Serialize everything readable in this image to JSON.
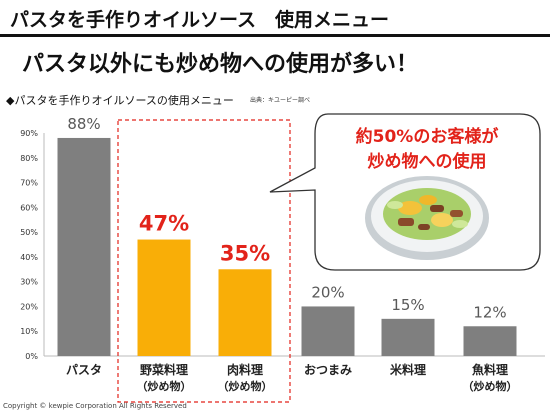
{
  "header": {
    "title": "パスタを手作りオイルソース　使用メニュー"
  },
  "headline": "パスタ以外にも炒め物への使用が多い！",
  "chart_caption": "◆パスタを手作りオイルソースの使用メニュー",
  "source": "出典：キユーピー調べ",
  "callout": {
    "line1": "約50%のお客様が",
    "line2": "炒め物への使用",
    "photo_icon": "stir-fry-dish-photo"
  },
  "copyright": "Copyright © kewpie Corporation All Rights Reserved",
  "colors": {
    "gray_bar": "#7f7f7f",
    "orange_bar": "#f9ae07",
    "highlight_red": "#e2231a",
    "label_gray": "#595959"
  },
  "chart_data": {
    "type": "bar",
    "ylim": [
      0,
      90
    ],
    "yticks": [
      "0%",
      "10%",
      "20%",
      "30%",
      "40%",
      "50%",
      "60%",
      "70%",
      "80%",
      "90%"
    ],
    "grid": false,
    "categories": [
      {
        "line1": "パスタ",
        "line2": ""
      },
      {
        "line1": "野菜料理",
        "line2": "（炒め物）"
      },
      {
        "line1": "肉料理",
        "line2": "（炒め物）"
      },
      {
        "line1": "おつまみ",
        "line2": ""
      },
      {
        "line1": "米料理",
        "line2": ""
      },
      {
        "line1": "魚料理",
        "line2": "（炒め物）"
      }
    ],
    "values": [
      88,
      47,
      35,
      20,
      15,
      12
    ],
    "value_labels": [
      "88%",
      "47%",
      "35%",
      "20%",
      "15%",
      "12%"
    ],
    "highlighted": [
      false,
      true,
      true,
      false,
      false,
      false
    ]
  }
}
